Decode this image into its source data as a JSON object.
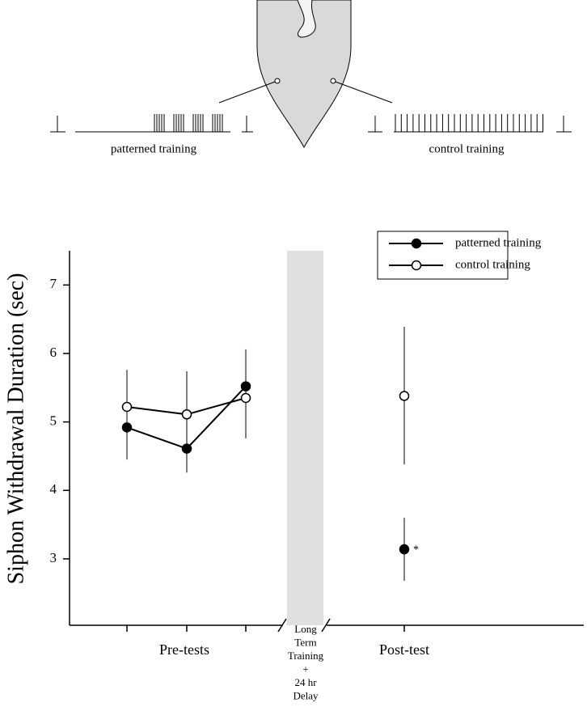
{
  "diagram": {
    "left_label": "patterned training",
    "right_label": "control training"
  },
  "chart_data": {
    "type": "line",
    "y_label": "Siphon Withdrawal Duration (sec)",
    "categories": [
      null,
      null,
      null,
      null,
      null
    ],
    "group_labels": [
      "Pre-tests",
      "Post-test"
    ],
    "break_label": [
      "Long",
      "Term",
      "Training",
      "+",
      "24 hr",
      "Delay"
    ],
    "annotation": "*",
    "ylim": [
      2.03,
      7.5
    ],
    "yticks": [
      3,
      4,
      5,
      6,
      7
    ],
    "legend": "top-right",
    "series": [
      {
        "name": "patterned training",
        "color": "#000000",
        "marker": "filled",
        "values": [
          4.92,
          4.61,
          5.52,
          null,
          3.14
        ],
        "errors": [
          [
            4.45,
            5.76
          ],
          [
            4.26,
            5.74
          ],
          [
            4.76,
            6.06
          ],
          null,
          [
            2.68,
            3.6
          ]
        ]
      },
      {
        "name": "control training",
        "color": "#000000",
        "marker": "open",
        "values": [
          5.22,
          5.11,
          5.35,
          null,
          5.38
        ],
        "errors": [
          null,
          null,
          null,
          null,
          [
            4.38,
            6.39
          ]
        ]
      }
    ]
  }
}
